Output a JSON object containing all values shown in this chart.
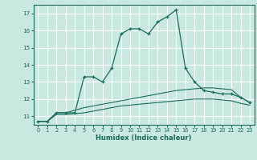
{
  "title": "",
  "xlabel": "Humidex (Indice chaleur)",
  "ylabel": "",
  "background_color": "#c8e8e0",
  "grid_color": "#b0d8d0",
  "line_color": "#1a6b5a",
  "xlim": [
    -0.5,
    23.5
  ],
  "ylim": [
    10.5,
    17.5
  ],
  "yticks": [
    11,
    12,
    13,
    14,
    15,
    16,
    17
  ],
  "xticks": [
    0,
    1,
    2,
    3,
    4,
    5,
    6,
    7,
    8,
    9,
    10,
    11,
    12,
    13,
    14,
    15,
    16,
    17,
    18,
    19,
    20,
    21,
    22,
    23
  ],
  "series1_x": [
    0,
    1,
    2,
    3,
    4,
    5,
    6,
    7,
    8,
    9,
    10,
    11,
    12,
    13,
    14,
    15,
    16,
    17,
    18,
    19,
    20,
    21,
    22,
    23
  ],
  "series1_y": [
    10.7,
    10.7,
    11.2,
    11.2,
    11.2,
    13.3,
    13.3,
    13.0,
    13.8,
    15.8,
    16.1,
    16.1,
    15.8,
    16.5,
    16.8,
    17.2,
    13.8,
    13.0,
    12.5,
    12.4,
    12.3,
    12.3,
    12.1,
    11.8
  ],
  "series2_x": [
    0,
    1,
    2,
    3,
    4,
    5,
    6,
    7,
    8,
    9,
    10,
    11,
    12,
    13,
    14,
    15,
    16,
    17,
    18,
    19,
    20,
    21,
    22,
    23
  ],
  "series2_y": [
    10.7,
    10.7,
    11.2,
    11.2,
    11.35,
    11.5,
    11.6,
    11.7,
    11.8,
    11.9,
    12.0,
    12.1,
    12.2,
    12.3,
    12.4,
    12.5,
    12.55,
    12.6,
    12.65,
    12.65,
    12.6,
    12.55,
    12.1,
    11.8
  ],
  "series3_x": [
    0,
    1,
    2,
    3,
    4,
    5,
    6,
    7,
    8,
    9,
    10,
    11,
    12,
    13,
    14,
    15,
    16,
    17,
    18,
    19,
    20,
    21,
    22,
    23
  ],
  "series3_y": [
    10.7,
    10.7,
    11.1,
    11.1,
    11.15,
    11.2,
    11.3,
    11.4,
    11.5,
    11.6,
    11.65,
    11.7,
    11.75,
    11.8,
    11.85,
    11.9,
    11.95,
    12.0,
    12.0,
    12.0,
    11.95,
    11.9,
    11.75,
    11.65
  ]
}
